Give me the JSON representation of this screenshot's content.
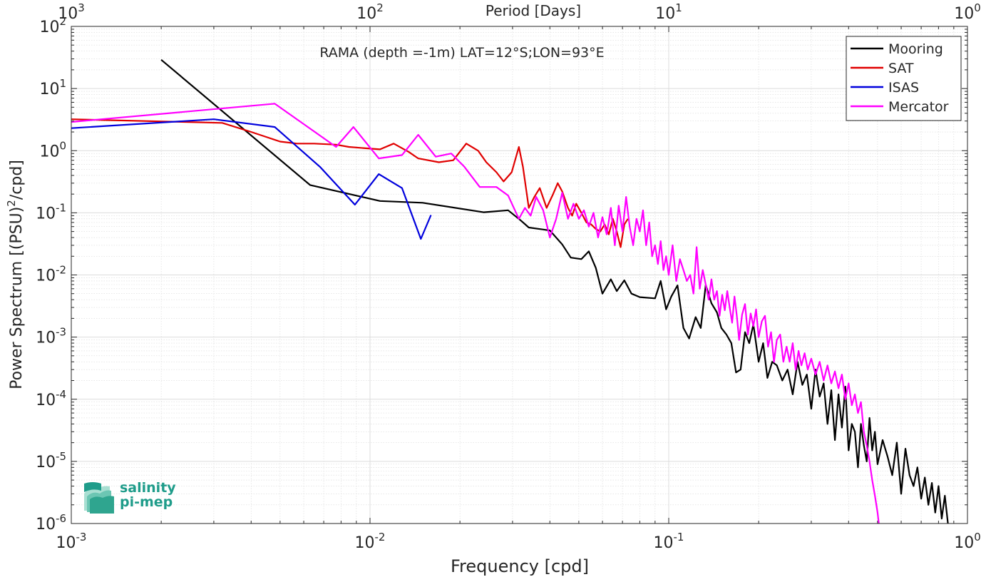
{
  "chart_data": {
    "type": "line",
    "title": "RAMA (depth =-1m) LAT=12°S;LON=93°E",
    "xlabel": "Frequency [cpd]",
    "ylabel_main": "Power Spectrum [(PSU)",
    "ylabel_sup": "2",
    "ylabel_tail": "/cpd]",
    "top_xlabel": "Period [Days]",
    "xscale": "log",
    "yscale": "log",
    "xlim": [
      0.001,
      1
    ],
    "ylim": [
      1e-06,
      100
    ],
    "grid": true,
    "legend_position": "top-right",
    "x_tick_labels": [
      [
        "10",
        "-3"
      ],
      [
        "10",
        "-2"
      ],
      [
        "10",
        "-1"
      ],
      [
        "10",
        "0"
      ]
    ],
    "y_tick_labels": [
      [
        "10",
        "-6"
      ],
      [
        "10",
        "-5"
      ],
      [
        "10",
        "-4"
      ],
      [
        "10",
        "-3"
      ],
      [
        "10",
        "-2"
      ],
      [
        "10",
        "-1"
      ],
      [
        "10",
        "0"
      ],
      [
        "10",
        "1"
      ],
      [
        "10",
        "2"
      ]
    ],
    "top_tick_labels": [
      [
        "10",
        "3"
      ],
      [
        "10",
        "2"
      ],
      [
        "10",
        "1"
      ],
      [
        "10",
        "0"
      ]
    ],
    "series": [
      {
        "name": "Mooring",
        "color": "#000000",
        "points": [
          [
            0.002,
            29
          ],
          [
            0.0063,
            0.28
          ],
          [
            0.0108,
            0.155
          ],
          [
            0.015,
            0.145
          ],
          [
            0.024,
            0.102
          ],
          [
            0.029,
            0.11
          ],
          [
            0.032,
            0.075
          ],
          [
            0.034,
            0.058
          ],
          [
            0.04,
            0.052
          ],
          [
            0.044,
            0.031
          ],
          [
            0.047,
            0.019
          ],
          [
            0.051,
            0.018
          ],
          [
            0.054,
            0.024
          ],
          [
            0.057,
            0.013
          ],
          [
            0.06,
            0.005
          ],
          [
            0.064,
            0.0085
          ],
          [
            0.067,
            0.0055
          ],
          [
            0.071,
            0.0082
          ],
          [
            0.075,
            0.005
          ],
          [
            0.08,
            0.0044
          ],
          [
            0.09,
            0.0042
          ],
          [
            0.094,
            0.008
          ],
          [
            0.098,
            0.0028
          ],
          [
            0.102,
            0.0045
          ],
          [
            0.107,
            0.0068
          ],
          [
            0.112,
            0.0014
          ],
          [
            0.117,
            0.00095
          ],
          [
            0.123,
            0.0021
          ],
          [
            0.128,
            0.0014
          ],
          [
            0.133,
            0.0069
          ],
          [
            0.139,
            0.0035
          ],
          [
            0.145,
            0.0025
          ],
          [
            0.15,
            0.0014
          ],
          [
            0.156,
            0.0011
          ],
          [
            0.162,
            0.0008
          ],
          [
            0.168,
            0.00027
          ],
          [
            0.174,
            0.0003
          ],
          [
            0.18,
            0.0012
          ],
          [
            0.186,
            0.0008
          ],
          [
            0.192,
            0.0016
          ],
          [
            0.2,
            0.0004
          ],
          [
            0.207,
            0.0008
          ],
          [
            0.214,
            0.00022
          ],
          [
            0.222,
            0.0004
          ],
          [
            0.23,
            0.00035
          ],
          [
            0.24,
            0.0002
          ],
          [
            0.25,
            0.0003
          ],
          [
            0.26,
            0.00012
          ],
          [
            0.27,
            0.0004
          ],
          [
            0.28,
            0.00017
          ],
          [
            0.29,
            0.00025
          ],
          [
            0.3,
            7e-05
          ],
          [
            0.31,
            0.0003
          ],
          [
            0.32,
            0.00011
          ],
          [
            0.33,
            0.00018
          ],
          [
            0.34,
            4e-05
          ],
          [
            0.35,
            0.00014
          ],
          [
            0.36,
            2.2e-05
          ],
          [
            0.37,
            0.00012
          ],
          [
            0.38,
            3.5e-05
          ],
          [
            0.39,
            0.00016
          ],
          [
            0.4,
            1.5e-05
          ],
          [
            0.41,
            4e-05
          ],
          [
            0.42,
            3e-05
          ],
          [
            0.43,
            8e-06
          ],
          [
            0.44,
            4e-05
          ],
          [
            0.45,
            1.8e-05
          ],
          [
            0.46,
            1e-05
          ],
          [
            0.47,
            5e-05
          ],
          [
            0.48,
            1.5e-05
          ],
          [
            0.49,
            3e-05
          ],
          [
            0.5,
            9e-06
          ],
          [
            0.52,
            2.2e-05
          ],
          [
            0.54,
            1.2e-05
          ],
          [
            0.56,
            6e-06
          ],
          [
            0.58,
            2e-05
          ],
          [
            0.6,
            3e-06
          ],
          [
            0.62,
            1.6e-05
          ],
          [
            0.64,
            6e-06
          ],
          [
            0.66,
            4e-06
          ],
          [
            0.68,
            8e-06
          ],
          [
            0.7,
            2.5e-06
          ],
          [
            0.72,
            5.5e-06
          ],
          [
            0.74,
            2e-06
          ],
          [
            0.76,
            4.5e-06
          ],
          [
            0.78,
            1.5e-06
          ],
          [
            0.8,
            4e-06
          ],
          [
            0.82,
            1.2e-06
          ],
          [
            0.84,
            2.8e-06
          ],
          [
            0.86,
            1e-06
          ]
        ]
      },
      {
        "name": "SAT",
        "color": "#e00000",
        "points": [
          [
            0.001,
            3.2
          ],
          [
            0.0032,
            2.8
          ],
          [
            0.004,
            2.0
          ],
          [
            0.005,
            1.4
          ],
          [
            0.0057,
            1.3
          ],
          [
            0.0065,
            1.3
          ],
          [
            0.0077,
            1.25
          ],
          [
            0.0085,
            1.15
          ],
          [
            0.0095,
            1.1
          ],
          [
            0.0108,
            1.05
          ],
          [
            0.012,
            1.3
          ],
          [
            0.0135,
            0.95
          ],
          [
            0.0145,
            0.75
          ],
          [
            0.017,
            0.65
          ],
          [
            0.019,
            0.7
          ],
          [
            0.021,
            1.3
          ],
          [
            0.023,
            1.0
          ],
          [
            0.0245,
            0.65
          ],
          [
            0.0265,
            0.45
          ],
          [
            0.028,
            0.32
          ],
          [
            0.0298,
            0.45
          ],
          [
            0.0315,
            1.15
          ],
          [
            0.0325,
            0.55
          ],
          [
            0.034,
            0.12
          ],
          [
            0.0355,
            0.18
          ],
          [
            0.037,
            0.25
          ],
          [
            0.039,
            0.12
          ],
          [
            0.041,
            0.2
          ],
          [
            0.0425,
            0.3
          ],
          [
            0.044,
            0.22
          ],
          [
            0.046,
            0.12
          ],
          [
            0.0475,
            0.09
          ],
          [
            0.049,
            0.14
          ],
          [
            0.051,
            0.1
          ],
          [
            0.053,
            0.07
          ],
          [
            0.055,
            0.065
          ],
          [
            0.057,
            0.055
          ],
          [
            0.059,
            0.05
          ],
          [
            0.061,
            0.065
          ],
          [
            0.063,
            0.045
          ],
          [
            0.065,
            0.08
          ],
          [
            0.067,
            0.05
          ],
          [
            0.069,
            0.028
          ],
          [
            0.071,
            0.065
          ],
          [
            0.073,
            0.08
          ]
        ]
      },
      {
        "name": "ISAS",
        "color": "#0000dd",
        "points": [
          [
            0.001,
            2.3
          ],
          [
            0.003,
            3.2
          ],
          [
            0.0048,
            2.4
          ],
          [
            0.0068,
            0.55
          ],
          [
            0.0089,
            0.135
          ],
          [
            0.0107,
            0.42
          ],
          [
            0.0128,
            0.25
          ],
          [
            0.0148,
            0.038
          ],
          [
            0.016,
            0.092
          ]
        ]
      },
      {
        "name": "Mercator",
        "color": "#ff00ff",
        "points": [
          [
            0.001,
            2.9
          ],
          [
            0.0048,
            5.7
          ],
          [
            0.0077,
            1.15
          ],
          [
            0.0088,
            2.4
          ],
          [
            0.0107,
            0.75
          ],
          [
            0.0128,
            0.85
          ],
          [
            0.0145,
            1.8
          ],
          [
            0.0166,
            0.8
          ],
          [
            0.0187,
            0.9
          ],
          [
            0.0207,
            0.55
          ],
          [
            0.0233,
            0.26
          ],
          [
            0.0265,
            0.26
          ],
          [
            0.029,
            0.19
          ],
          [
            0.0315,
            0.08
          ],
          [
            0.033,
            0.12
          ],
          [
            0.0345,
            0.09
          ],
          [
            0.036,
            0.18
          ],
          [
            0.038,
            0.11
          ],
          [
            0.04,
            0.04
          ],
          [
            0.042,
            0.08
          ],
          [
            0.044,
            0.21
          ],
          [
            0.046,
            0.08
          ],
          [
            0.048,
            0.14
          ],
          [
            0.05,
            0.08
          ],
          [
            0.052,
            0.11
          ],
          [
            0.054,
            0.06
          ],
          [
            0.056,
            0.1
          ],
          [
            0.058,
            0.04
          ],
          [
            0.06,
            0.085
          ],
          [
            0.062,
            0.045
          ],
          [
            0.064,
            0.12
          ],
          [
            0.066,
            0.03
          ],
          [
            0.068,
            0.13
          ],
          [
            0.07,
            0.05
          ],
          [
            0.072,
            0.18
          ],
          [
            0.074,
            0.06
          ],
          [
            0.076,
            0.03
          ],
          [
            0.078,
            0.08
          ],
          [
            0.08,
            0.05
          ],
          [
            0.082,
            0.11
          ],
          [
            0.084,
            0.03
          ],
          [
            0.086,
            0.07
          ],
          [
            0.088,
            0.02
          ],
          [
            0.09,
            0.03
          ],
          [
            0.092,
            0.015
          ],
          [
            0.094,
            0.035
          ],
          [
            0.096,
            0.012
          ],
          [
            0.098,
            0.02
          ],
          [
            0.1,
            0.01
          ],
          [
            0.103,
            0.03
          ],
          [
            0.106,
            0.008
          ],
          [
            0.109,
            0.018
          ],
          [
            0.112,
            0.012
          ],
          [
            0.115,
            0.008
          ],
          [
            0.118,
            0.01
          ],
          [
            0.121,
            0.005
          ],
          [
            0.124,
            0.028
          ],
          [
            0.127,
            0.006
          ],
          [
            0.13,
            0.012
          ],
          [
            0.133,
            0.007
          ],
          [
            0.136,
            0.004
          ],
          [
            0.139,
            0.0085
          ],
          [
            0.142,
            0.004
          ],
          [
            0.145,
            0.0055
          ],
          [
            0.148,
            0.0022
          ],
          [
            0.151,
            0.0048
          ],
          [
            0.154,
            0.0027
          ],
          [
            0.157,
            0.0055
          ],
          [
            0.16,
            0.003
          ],
          [
            0.163,
            0.0017
          ],
          [
            0.166,
            0.0045
          ],
          [
            0.169,
            0.0022
          ],
          [
            0.172,
            0.0009
          ],
          [
            0.176,
            0.0023
          ],
          [
            0.18,
            0.0034
          ],
          [
            0.184,
            0.0011
          ],
          [
            0.188,
            0.0024
          ],
          [
            0.192,
            0.0015
          ],
          [
            0.196,
            0.0028
          ],
          [
            0.2,
            0.001
          ],
          [
            0.205,
            0.0018
          ],
          [
            0.21,
            0.0022
          ],
          [
            0.215,
            0.0007
          ],
          [
            0.22,
            0.0012
          ],
          [
            0.225,
            0.0004
          ],
          [
            0.23,
            0.0009
          ],
          [
            0.236,
            0.0011
          ],
          [
            0.242,
            0.0004
          ],
          [
            0.248,
            0.0007
          ],
          [
            0.254,
            0.0004
          ],
          [
            0.26,
            0.0008
          ],
          [
            0.266,
            0.0003
          ],
          [
            0.272,
            0.0006
          ],
          [
            0.278,
            0.00035
          ],
          [
            0.285,
            0.00055
          ],
          [
            0.292,
            0.0003
          ],
          [
            0.3,
            0.00045
          ],
          [
            0.31,
            0.00025
          ],
          [
            0.32,
            0.0004
          ],
          [
            0.33,
            0.0002
          ],
          [
            0.34,
            0.00035
          ],
          [
            0.35,
            0.00018
          ],
          [
            0.36,
            0.00028
          ],
          [
            0.37,
            0.00015
          ],
          [
            0.38,
            0.00025
          ],
          [
            0.39,
            0.0001
          ],
          [
            0.4,
            0.00018
          ],
          [
            0.41,
            8e-05
          ],
          [
            0.42,
            0.00012
          ],
          [
            0.43,
            6e-05
          ],
          [
            0.44,
            9e-05
          ],
          [
            0.45,
            3e-05
          ],
          [
            0.46,
            1.8e-05
          ],
          [
            0.47,
            1e-05
          ],
          [
            0.48,
            5e-06
          ],
          [
            0.49,
            2.8e-06
          ],
          [
            0.5,
            1.5e-06
          ],
          [
            0.505,
            1e-06
          ]
        ]
      }
    ]
  },
  "logo": {
    "line1": "salinity",
    "line2": "pi-mep",
    "color": "#1f9c8a"
  }
}
